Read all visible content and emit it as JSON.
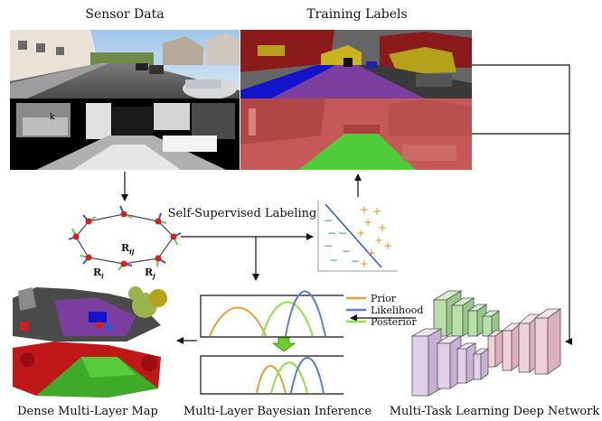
{
  "headings": {
    "sensor": "Sensor Data",
    "training": "Training Labels",
    "self_supervised": "Self-Supervised Labeling",
    "dense_map": "Dense Multi-Layer Map",
    "bayesian": "Multi-Layer Bayesian Inference",
    "network": "Multi-Task Learning Deep Network"
  },
  "pose_graph_labels": {
    "rij_base": "R",
    "rij_sub": "ij",
    "ri_base": "R",
    "ri_sub": "i",
    "rj_base": "R",
    "rj_sub": "j"
  },
  "legend": {
    "prior": "Prior",
    "likelihood": "Likelihood",
    "posterior": "Posterior"
  },
  "colors": {
    "prior": "#e8a23a",
    "likelihood": "#5b7fd6",
    "posterior": "#8fe04a",
    "semantic_sky": "#666666",
    "semantic_building": "#8b1a1a",
    "semantic_road": "#7b3fa0",
    "semantic_sidewalk": "#1414cc",
    "semantic_vegetation": "#b5a11a",
    "traversable_green": "#4ecc3a",
    "net_green": "#b8e0a8",
    "net_pink": "#f0d0d8",
    "net_lavender": "#e0cfe6",
    "arrow_green": "#6ecb2c"
  },
  "scatter_symbols": {
    "plus": "+",
    "minus": "−"
  }
}
